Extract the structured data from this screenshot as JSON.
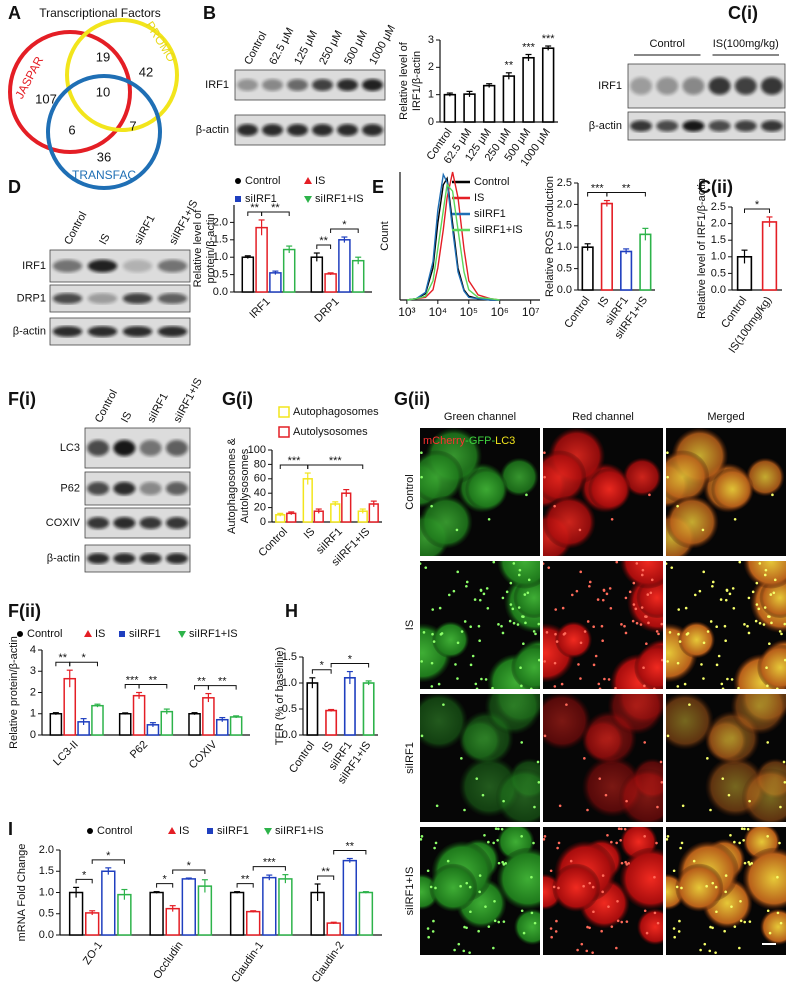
{
  "panel_labels": [
    "A",
    "B",
    "C(i)",
    "C(ii)",
    "D",
    "E",
    "F(i)",
    "F(ii)",
    "G(i)",
    "G(ii)",
    "H",
    "I"
  ],
  "venn": {
    "title": "Transcriptional Factors",
    "sets": [
      {
        "name": "JASPAR",
        "color": "#e41e25"
      },
      {
        "name": "PROMO",
        "color": "#f2e51c"
      },
      {
        "name": "TRANSFAC",
        "color": "#1f6fb5"
      }
    ],
    "regions": {
      "jaspar_only": "107",
      "jaspar_promo": "19",
      "promo_only": "42",
      "all": "10",
      "jaspar_transfac": "6",
      "promo_transfac": "7",
      "transfac_only": "36"
    }
  },
  "blots": [
    {
      "lanes": [
        "Control",
        "62.5 μM",
        "125 μM",
        "250 μM",
        "500 μM",
        "1000 μM"
      ],
      "rows": [
        "IRF1",
        "β-actin"
      ]
    },
    {
      "groups": [
        "Control",
        "IS(100mg/kg)"
      ],
      "rows": [
        "IRF1",
        "β-actin"
      ]
    },
    {
      "lanes": [
        "Control",
        "IS",
        "siIRF1",
        "siIRF1+IS"
      ],
      "rows": [
        "IRF1",
        "DRP1",
        "β-actin"
      ]
    },
    {
      "lanes": [
        "Control",
        "IS",
        "siIRF1",
        "siIRF1+IS"
      ],
      "rows": [
        "LC3",
        "P62",
        "COXIV",
        "β-actin"
      ]
    }
  ],
  "chart_data": [
    {
      "type": "bar",
      "ylabel": [
        "Relative level of",
        "IRF1/β-actin"
      ],
      "categories": [
        "Control",
        "62.5 μM",
        "125 μM",
        "250 μM",
        "500 μM",
        "1000 μM"
      ],
      "values": [
        1.0,
        1.02,
        1.33,
        1.68,
        2.35,
        2.7
      ],
      "errors": [
        0.06,
        0.1,
        0.07,
        0.12,
        0.12,
        0.08
      ],
      "color": "#000000",
      "ylim": [
        0,
        3
      ],
      "yticks": [
        0,
        1,
        2,
        3
      ],
      "significance": [
        {
          "label": "**",
          "bar": 3
        },
        {
          "label": "***",
          "bar": 4
        },
        {
          "label": "***",
          "bar": 5
        }
      ]
    },
    {
      "type": "bar",
      "ylabel": [
        "Relative level of IRF1/β-actin"
      ],
      "categories": [
        "Control",
        "IS(100mg/kg)"
      ],
      "values": [
        1.0,
        2.05
      ],
      "errors": [
        0.2,
        0.15
      ],
      "colors": [
        "#000000",
        "#e41e25"
      ],
      "ylim": [
        0,
        2.5
      ],
      "yticks": [
        {
          "value": 0,
          "label": "0.0"
        },
        {
          "value": 0.5,
          "label": "0.5"
        },
        {
          "value": 1,
          "label": "1.0"
        },
        {
          "value": 1.5,
          "label": "1.5"
        },
        {
          "value": 2,
          "label": "2.0"
        },
        {
          "value": 2.5,
          "label": "2.5"
        }
      ],
      "significance": [
        {
          "label": "*",
          "from": 0,
          "to": 1
        }
      ]
    },
    {
      "type": "bar",
      "ylabel": [
        "Relative level of",
        "protein/β-actin"
      ],
      "categories": [
        "IRF1",
        "DRP1"
      ],
      "series": [
        {
          "name": "Control",
          "color": "#000000",
          "marker": "circle",
          "values": [
            1.0,
            1.0
          ],
          "errors": [
            0.04,
            0.12
          ]
        },
        {
          "name": "IS",
          "color": "#e41e25",
          "marker": "triangle-up",
          "values": [
            1.85,
            0.52
          ],
          "errors": [
            0.22,
            0.03
          ]
        },
        {
          "name": "siIRF1",
          "color": "#1f3fbf",
          "marker": "square",
          "values": [
            0.55,
            1.5
          ],
          "errors": [
            0.05,
            0.08
          ]
        },
        {
          "name": "siIRF1+IS",
          "color": "#2db34a",
          "marker": "triangle-down",
          "values": [
            1.22,
            0.9
          ],
          "errors": [
            0.1,
            0.1
          ]
        }
      ],
      "ylim": [
        0,
        2.5
      ],
      "yticks": [
        {
          "value": 0,
          "label": "0.0"
        },
        {
          "value": 0.5,
          "label": "0.5"
        },
        {
          "value": 1,
          "label": "1.0"
        },
        {
          "value": 1.5,
          "label": "1.5"
        },
        {
          "value": 2,
          "label": "2.0"
        }
      ],
      "significance": [
        {
          "label": "**",
          "from": [
            0,
            0
          ],
          "to": [
            0,
            1
          ]
        },
        {
          "label": "**",
          "from": [
            0,
            1
          ],
          "to": [
            0,
            3
          ]
        },
        {
          "label": "**",
          "from": [
            1,
            0
          ],
          "to": [
            1,
            1
          ]
        },
        {
          "label": "*",
          "from": [
            1,
            1
          ],
          "to": [
            1,
            3
          ]
        }
      ]
    },
    {
      "type": "line",
      "ylabel": [
        "Count"
      ],
      "xscale": "log",
      "xlim": [
        600,
        20000000
      ],
      "xticks": [
        {
          "value": 1000,
          "label": "10³"
        },
        {
          "value": 10000,
          "label": "10⁴"
        },
        {
          "value": 100000,
          "label": "10⁵"
        },
        {
          "value": 1000000,
          "label": "10⁶"
        },
        {
          "value": 10000000,
          "label": "10⁷"
        }
      ],
      "ylim": [
        0,
        100
      ],
      "x": [
        1000,
        2000,
        4000,
        7000,
        10000,
        15000,
        20000,
        30000,
        45000,
        70000,
        100000,
        200000,
        500000,
        1000000
      ],
      "series": [
        {
          "name": "Control",
          "color": "#000000",
          "values": [
            0,
            1,
            5,
            25,
            60,
            90,
            95,
            60,
            25,
            8,
            3,
            1,
            0,
            0
          ]
        },
        {
          "name": "IS",
          "color": "#e41e25",
          "values": [
            0,
            1,
            2,
            8,
            25,
            55,
            80,
            100,
            80,
            40,
            15,
            4,
            1,
            0
          ]
        },
        {
          "name": "siIRF1",
          "color": "#1f6fb5",
          "values": [
            0,
            1,
            6,
            30,
            70,
            98,
            92,
            55,
            22,
            7,
            2,
            1,
            0,
            0
          ]
        },
        {
          "name": "siIRF1+IS",
          "color": "#5cd65c",
          "values": [
            0,
            1,
            3,
            15,
            40,
            70,
            90,
            85,
            55,
            22,
            8,
            2,
            1,
            0
          ]
        }
      ]
    },
    {
      "type": "bar",
      "ylabel": [
        "Relative ROS production"
      ],
      "categories": [
        "Control",
        "IS",
        "siIRF1",
        "siIRF1+IS"
      ],
      "values": [
        1.0,
        2.02,
        0.9,
        1.3
      ],
      "errors": [
        0.08,
        0.07,
        0.06,
        0.14
      ],
      "colors": [
        "#000000",
        "#e41e25",
        "#1f3fbf",
        "#2db34a"
      ],
      "ylim": [
        0,
        2.5
      ],
      "yticks": [
        {
          "value": 0,
          "label": "0.0"
        },
        {
          "value": 0.5,
          "label": "0.5"
        },
        {
          "value": 1,
          "label": "1.0"
        },
        {
          "value": 1.5,
          "label": "1.5"
        },
        {
          "value": 2,
          "label": "2.0"
        },
        {
          "value": 2.5,
          "label": "2.5"
        }
      ],
      "significance": [
        {
          "label": "***",
          "from": 0,
          "to": 1
        },
        {
          "label": "**",
          "from": 1,
          "to": 3
        }
      ]
    },
    {
      "type": "bar",
      "ylabel": [
        "Autophagosomes &",
        "Autolysosomes"
      ],
      "categories": [
        "Control",
        "IS",
        "siIRF1",
        "siIRF1+IS"
      ],
      "series": [
        {
          "name": "Autophagosomes",
          "color": "#f2e51c",
          "marker": "square-open",
          "values": [
            10,
            60,
            25,
            15
          ],
          "errors": [
            2,
            8,
            3,
            3
          ]
        },
        {
          "name": "Autolysosomes",
          "color": "#e41e25",
          "marker": "square-open",
          "values": [
            12,
            15,
            40,
            25
          ],
          "errors": [
            2,
            3,
            5,
            4
          ]
        }
      ],
      "ylim": [
        0,
        100
      ],
      "yticks": [
        0,
        20,
        40,
        60,
        80,
        100
      ],
      "significance": [
        {
          "label": "***",
          "from": [
            0,
            0
          ],
          "to": [
            1,
            0
          ]
        },
        {
          "label": "***",
          "from": [
            1,
            0
          ],
          "to": [
            3,
            0
          ]
        }
      ]
    },
    {
      "type": "bar",
      "ylabel": [
        "Relative protein/β-actin"
      ],
      "categories": [
        "LC3-II",
        "P62",
        "COXIV"
      ],
      "series": [
        {
          "name": "Control",
          "color": "#000000",
          "marker": "circle",
          "values": [
            1.0,
            1.0,
            1.0
          ],
          "errors": [
            0.05,
            0.04,
            0.05
          ]
        },
        {
          "name": "IS",
          "color": "#e41e25",
          "marker": "triangle-up",
          "values": [
            2.65,
            1.85,
            1.75
          ],
          "errors": [
            0.4,
            0.15,
            0.2
          ]
        },
        {
          "name": "siIRF1",
          "color": "#1f3fbf",
          "marker": "square",
          "values": [
            0.62,
            0.48,
            0.72
          ],
          "errors": [
            0.15,
            0.1,
            0.1
          ]
        },
        {
          "name": "siIRF1+IS",
          "color": "#2db34a",
          "marker": "triangle-down",
          "values": [
            1.38,
            1.1,
            0.85
          ],
          "errors": [
            0.07,
            0.12,
            0.05
          ]
        }
      ],
      "ylim": [
        0,
        4
      ],
      "yticks": [
        0,
        1,
        2,
        3,
        4
      ],
      "significance": [
        {
          "label": "**",
          "from": [
            0,
            0
          ],
          "to": [
            0,
            1
          ]
        },
        {
          "label": "*",
          "from": [
            0,
            1
          ],
          "to": [
            0,
            3
          ]
        },
        {
          "label": "***",
          "from": [
            1,
            0
          ],
          "to": [
            1,
            1
          ]
        },
        {
          "label": "**",
          "from": [
            1,
            1
          ],
          "to": [
            1,
            3
          ]
        },
        {
          "label": "**",
          "from": [
            2,
            0
          ],
          "to": [
            2,
            1
          ]
        },
        {
          "label": "**",
          "from": [
            2,
            1
          ],
          "to": [
            2,
            3
          ]
        }
      ]
    },
    {
      "type": "bar",
      "ylabel": [
        "TER (% of baseline)"
      ],
      "categories": [
        "Control",
        "IS",
        "siIRF1",
        "siIRF1+IS"
      ],
      "values": [
        1.0,
        0.47,
        1.1,
        1.0
      ],
      "errors": [
        0.1,
        0.02,
        0.12,
        0.04
      ],
      "colors": [
        "#000000",
        "#e41e25",
        "#1f3fbf",
        "#2db34a"
      ],
      "ylim": [
        0,
        1.5
      ],
      "yticks": [
        {
          "value": 0,
          "label": "0.0"
        },
        {
          "value": 0.5,
          "label": "0.5"
        },
        {
          "value": 1,
          "label": "1.0"
        },
        {
          "value": 1.5,
          "label": "1.5"
        }
      ],
      "significance": [
        {
          "label": "*",
          "from": 0,
          "to": 1
        },
        {
          "label": "*",
          "from": 1,
          "to": 3
        }
      ]
    },
    {
      "type": "bar",
      "ylabel": [
        "mRNA Fold Change"
      ],
      "categories": [
        "ZO-1",
        "Occludin",
        "Claudin-1",
        "Claudin-2"
      ],
      "series": [
        {
          "name": "Control",
          "color": "#000000",
          "marker": "circle",
          "values": [
            1.0,
            1.0,
            1.0,
            1.0
          ],
          "errors": [
            0.12,
            0.02,
            0.02,
            0.2
          ]
        },
        {
          "name": "IS",
          "color": "#e41e25",
          "marker": "triangle-up",
          "values": [
            0.52,
            0.62,
            0.55,
            0.28
          ],
          "errors": [
            0.05,
            0.07,
            0.02,
            0.02
          ]
        },
        {
          "name": "siIRF1",
          "color": "#1f3fbf",
          "marker": "square",
          "values": [
            1.5,
            1.32,
            1.35,
            1.75
          ],
          "errors": [
            0.08,
            0.02,
            0.06,
            0.05
          ]
        },
        {
          "name": "siIRF1+IS",
          "color": "#2db34a",
          "marker": "triangle-down",
          "values": [
            0.95,
            1.15,
            1.32,
            1.0
          ],
          "errors": [
            0.12,
            0.15,
            0.1,
            0.02
          ]
        }
      ],
      "ylim": [
        0,
        2
      ],
      "yticks": [
        {
          "value": 0,
          "label": "0.0"
        },
        {
          "value": 0.5,
          "label": "0.5"
        },
        {
          "value": 1,
          "label": "1.0"
        },
        {
          "value": 1.5,
          "label": "1.5"
        },
        {
          "value": 2,
          "label": "2.0"
        }
      ],
      "significance": [
        {
          "label": "*",
          "from": [
            0,
            0
          ],
          "to": [
            0,
            1
          ]
        },
        {
          "label": "*",
          "from": [
            0,
            1
          ],
          "to": [
            0,
            3
          ]
        },
        {
          "label": "*",
          "from": [
            1,
            0
          ],
          "to": [
            1,
            1
          ]
        },
        {
          "label": "*",
          "from": [
            1,
            1
          ],
          "to": [
            1,
            3
          ]
        },
        {
          "label": "**",
          "from": [
            2,
            0
          ],
          "to": [
            2,
            1
          ]
        },
        {
          "label": "***",
          "from": [
            2,
            1
          ],
          "to": [
            2,
            3
          ]
        },
        {
          "label": "**",
          "from": [
            3,
            0
          ],
          "to": [
            3,
            1
          ]
        },
        {
          "label": "**",
          "from": [
            3,
            1
          ],
          "to": [
            3,
            3
          ]
        }
      ]
    }
  ],
  "microscopy": {
    "columns": [
      "Green channel",
      "Red channel",
      "Merged"
    ],
    "rows": [
      "Control",
      "IS",
      "siIRF1",
      "siIRF1+IS"
    ],
    "overlay": [
      "mCherry",
      "-GFP-",
      "LC3"
    ]
  }
}
